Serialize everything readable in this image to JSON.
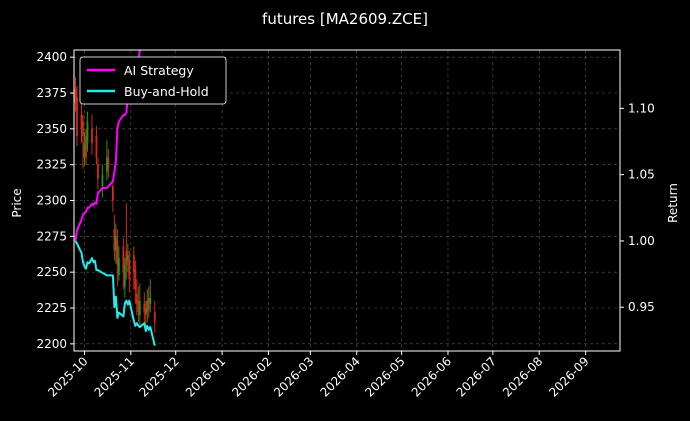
{
  "title": "futures [MA2609.ZCE]",
  "colors": {
    "background": "#000000",
    "axes": "#ffffff",
    "grid": "#5a5a5a",
    "ai_strategy": "#ff00ff",
    "buy_and_hold": "#22ecec",
    "candle_up": "#1a9a1a",
    "candle_down": "#d42a1a"
  },
  "chart_data": {
    "type": "line",
    "title": "futures [MA2609.ZCE]",
    "ylabel": "Price",
    "y2label": "Return",
    "ylim": [
      2195,
      2405
    ],
    "y2lim": [
      0.917,
      1.144
    ],
    "xlim": [
      "2025-09-24",
      "2026-09-24"
    ],
    "grid": true,
    "legend_position": "top-left",
    "x_ticks": [
      "2025-10-01",
      "2025-11-01",
      "2025-12-01",
      "2026-01-01",
      "2026-02-01",
      "2026-03-01",
      "2026-04-01",
      "2026-05-01",
      "2026-06-01",
      "2026-07-01",
      "2026-08-01",
      "2026-09-01"
    ],
    "x_tick_labels": [
      "2025-10",
      "2025-11",
      "2025-12",
      "2026-01",
      "2026-02",
      "2026-03",
      "2026-04",
      "2026-05",
      "2026-06",
      "2026-07",
      "2026-08",
      "2026-09"
    ],
    "y_ticks": [
      2200,
      2225,
      2250,
      2275,
      2300,
      2325,
      2350,
      2375,
      2400
    ],
    "y2_ticks": [
      0.95,
      1.0,
      1.05,
      1.1
    ],
    "y2_tick_labels": [
      "0.95",
      "1.00",
      "1.05",
      "1.10"
    ],
    "series": [
      {
        "name": "AI Strategy",
        "axis": "right",
        "x": [
          "2025-09-25",
          "2025-09-26",
          "2025-09-29",
          "2025-09-30",
          "2025-10-01",
          "2025-10-02",
          "2025-10-03",
          "2025-10-04",
          "2025-10-06",
          "2025-10-07",
          "2025-10-08",
          "2025-10-09",
          "2025-10-10",
          "2025-10-13",
          "2025-10-16",
          "2025-10-20",
          "2025-10-22",
          "2025-10-23",
          "2025-10-24",
          "2025-10-27",
          "2025-10-28",
          "2025-10-29",
          "2025-10-30",
          "2025-11-03",
          "2025-11-05",
          "2025-11-07"
        ],
        "values": [
          1.0,
          1.008,
          1.016,
          1.02,
          1.021,
          1.022,
          1.025,
          1.025,
          1.028,
          1.027,
          1.029,
          1.028,
          1.036,
          1.04,
          1.04,
          1.045,
          1.06,
          1.085,
          1.09,
          1.095,
          1.095,
          1.097,
          1.11,
          1.117,
          1.127,
          1.144
        ]
      },
      {
        "name": "Buy-and-Hold",
        "axis": "right",
        "x": [
          "2025-09-25",
          "2025-09-26",
          "2025-09-29",
          "2025-09-30",
          "2025-10-01",
          "2025-10-02",
          "2025-10-03",
          "2025-10-04",
          "2025-10-06",
          "2025-10-07",
          "2025-10-08",
          "2025-10-09",
          "2025-10-10",
          "2025-10-13",
          "2025-10-16",
          "2025-10-20",
          "2025-10-21",
          "2025-10-22",
          "2025-10-23",
          "2025-10-24",
          "2025-10-27",
          "2025-10-28",
          "2025-10-29",
          "2025-10-30",
          "2025-10-31",
          "2025-11-03",
          "2025-11-04",
          "2025-11-05",
          "2025-11-06",
          "2025-11-07",
          "2025-11-10",
          "2025-11-11",
          "2025-11-12",
          "2025-11-13",
          "2025-11-14",
          "2025-11-17"
        ],
        "values": [
          1.0,
          0.998,
          0.991,
          0.984,
          0.981,
          0.979,
          0.984,
          0.983,
          0.987,
          0.984,
          0.985,
          0.978,
          0.978,
          0.976,
          0.974,
          0.974,
          0.95,
          0.958,
          0.942,
          0.946,
          0.943,
          0.953,
          0.955,
          0.952,
          0.955,
          0.94,
          0.936,
          0.938,
          0.936,
          0.935,
          0.938,
          0.932,
          0.936,
          0.933,
          0.935,
          0.921
        ]
      }
    ],
    "candles": {
      "x": [
        "2025-09-25",
        "2025-09-26",
        "2025-09-29",
        "2025-09-30",
        "2025-10-01",
        "2025-10-02",
        "2025-10-03",
        "2025-10-06",
        "2025-10-09",
        "2025-10-10",
        "2025-10-13",
        "2025-10-16",
        "2025-10-17",
        "2025-10-20",
        "2025-10-21",
        "2025-10-22",
        "2025-10-23",
        "2025-10-24",
        "2025-10-27",
        "2025-10-28",
        "2025-10-29",
        "2025-10-30",
        "2025-10-31",
        "2025-11-03",
        "2025-11-04",
        "2025-11-05",
        "2025-11-06",
        "2025-11-07",
        "2025-11-10",
        "2025-11-11",
        "2025-11-12",
        "2025-11-13",
        "2025-11-14",
        "2025-11-17"
      ],
      "open": [
        2378,
        2372,
        2360,
        2355,
        2330,
        2345,
        2340,
        2350,
        2345,
        2325,
        2310,
        2320,
        2330,
        2310,
        2280,
        2265,
        2272,
        2248,
        2268,
        2240,
        2265,
        2258,
        2258,
        2262,
        2252,
        2235,
        2230,
        2220,
        2228,
        2225,
        2222,
        2232,
        2228,
        2222
      ],
      "close": [
        2368,
        2345,
        2350,
        2345,
        2340,
        2330,
        2355,
        2340,
        2330,
        2315,
        2318,
        2330,
        2322,
        2300,
        2265,
        2275,
        2255,
        2260,
        2250,
        2255,
        2255,
        2262,
        2245,
        2250,
        2238,
        2228,
        2222,
        2230,
        2222,
        2220,
        2230,
        2224,
        2232,
        2215
      ],
      "high": [
        2386,
        2380,
        2368,
        2360,
        2348,
        2350,
        2362,
        2360,
        2352,
        2330,
        2325,
        2342,
        2336,
        2312,
        2290,
        2284,
        2280,
        2268,
        2274,
        2260,
        2298,
        2270,
        2265,
        2268,
        2258,
        2245,
        2240,
        2242,
        2236,
        2230,
        2238,
        2240,
        2245,
        2230
      ],
      "low": [
        2362,
        2338,
        2340,
        2322,
        2324,
        2325,
        2334,
        2332,
        2325,
        2308,
        2302,
        2314,
        2316,
        2292,
        2258,
        2256,
        2240,
        2244,
        2238,
        2232,
        2245,
        2250,
        2236,
        2238,
        2228,
        2220,
        2215,
        2212,
        2215,
        2210,
        2215,
        2218,
        2222,
        2208
      ]
    }
  },
  "legend": [
    {
      "label": "AI Strategy",
      "color": "#ff00ff"
    },
    {
      "label": "Buy-and-Hold",
      "color": "#22ecec"
    }
  ]
}
